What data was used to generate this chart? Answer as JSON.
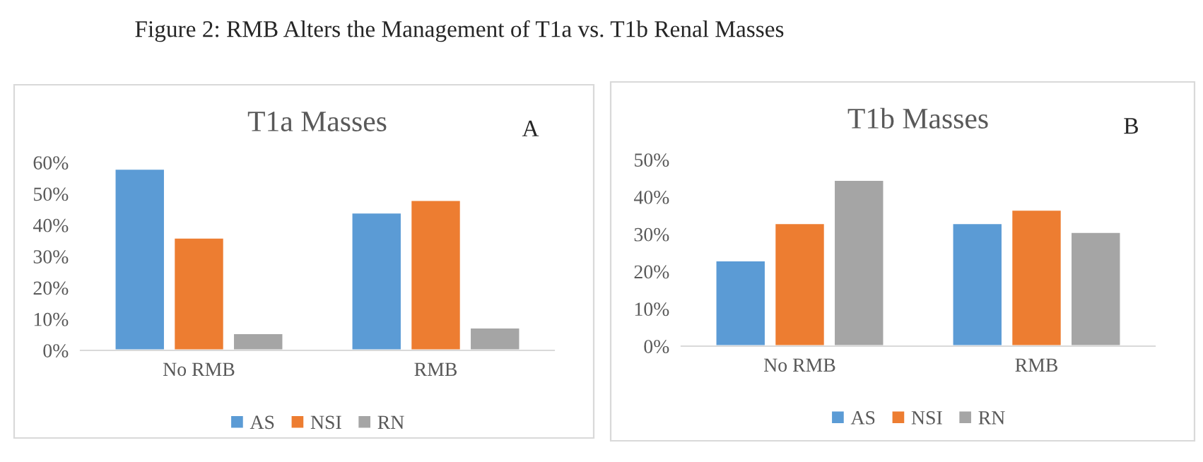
{
  "chart_data": [
    {
      "type": "bar",
      "title": "T1a Masses",
      "annotations": [
        "Figure 2: RMB Alters the Management of T1a vs. T1b Renal Masses",
        "A"
      ],
      "categories": [
        "No RMB",
        "RMB"
      ],
      "series": [
        {
          "name": "AS",
          "color": "#5b9bd5",
          "values": [
            58,
            44
          ]
        },
        {
          "name": "NSI",
          "color": "#ed7d31",
          "values": [
            36,
            48
          ]
        },
        {
          "name": "RN",
          "color": "#a5a5a5",
          "values": [
            5.5,
            7.3
          ]
        }
      ],
      "ylim": [
        0,
        60
      ],
      "yticks": [
        {
          "value": 0,
          "label": "0%"
        },
        {
          "value": 10,
          "label": "10%"
        },
        {
          "value": 20,
          "label": "20%"
        },
        {
          "value": 30,
          "label": "30%"
        },
        {
          "value": 40,
          "label": "40%"
        },
        {
          "value": 50,
          "label": "50%"
        },
        {
          "value": 60,
          "label": "60%"
        }
      ],
      "grid": false,
      "legend": "bottom"
    },
    {
      "type": "bar",
      "title": "T1b Masses",
      "annotations": [
        "B"
      ],
      "categories": [
        "No RMB",
        "RMB"
      ],
      "series": [
        {
          "name": "AS",
          "color": "#5b9bd5",
          "values": [
            23,
            33
          ]
        },
        {
          "name": "NSI",
          "color": "#ed7d31",
          "values": [
            33,
            36.6
          ]
        },
        {
          "name": "RN",
          "color": "#a5a5a5",
          "values": [
            44.6,
            30.6
          ]
        }
      ],
      "ylim": [
        0,
        50
      ],
      "yticks": [
        {
          "value": 0,
          "label": "0%"
        },
        {
          "value": 10,
          "label": "10%"
        },
        {
          "value": 20,
          "label": "20%"
        },
        {
          "value": 30,
          "label": "30%"
        },
        {
          "value": 40,
          "label": "40%"
        },
        {
          "value": 50,
          "label": "50%"
        }
      ],
      "grid": false,
      "legend": "bottom"
    }
  ]
}
